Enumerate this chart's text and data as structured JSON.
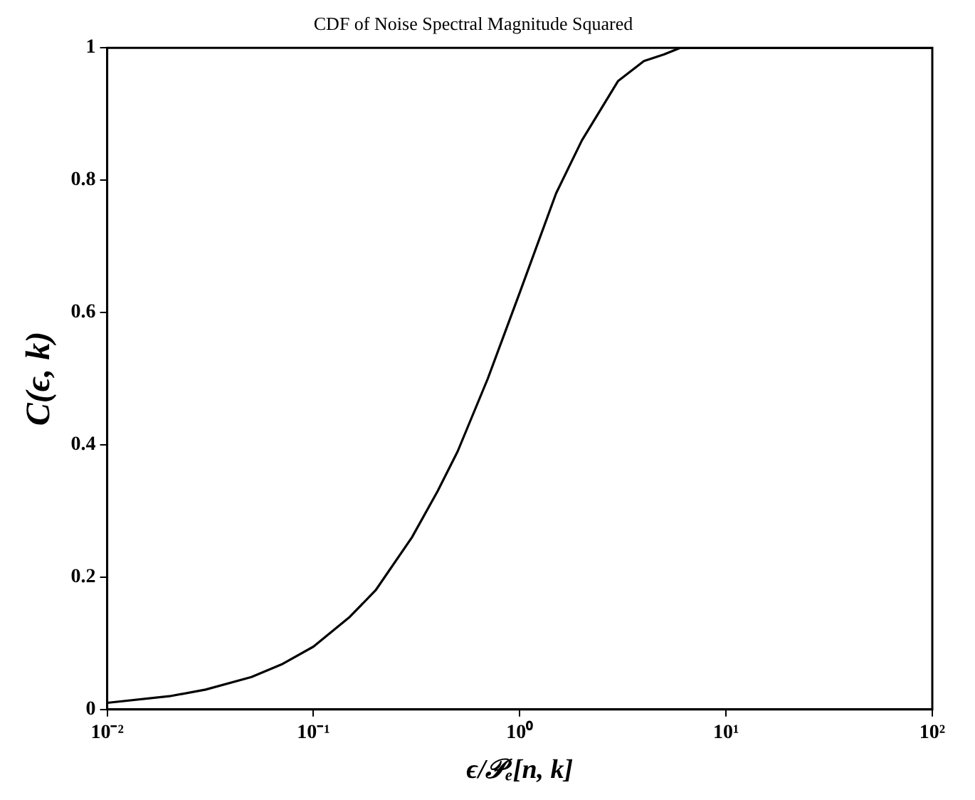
{
  "chart_data": {
    "type": "line",
    "title": "CDF of Noise Spectral Magnitude Squared",
    "xlabel": "ϵ/𝒫ₑ[n, k]",
    "ylabel": "C(ϵ, k)",
    "log": "x",
    "grid": false,
    "legend": false,
    "marker": "none",
    "line_style": "solid",
    "xlim": [
      0.01,
      100
    ],
    "xticks": [
      {
        "value": 0.01,
        "label": "10⁻²"
      },
      {
        "value": 0.1,
        "label": "10⁻¹"
      },
      {
        "value": 1,
        "label": "10⁰"
      },
      {
        "value": 10,
        "label": "10¹"
      },
      {
        "value": 100,
        "label": "10²"
      }
    ],
    "ylim": [
      0,
      1
    ],
    "yticks": [
      0,
      0.2,
      0.4,
      0.6,
      0.8,
      1
    ],
    "series": [
      {
        "color": "#000000",
        "x": [
          0.01,
          0.02,
          0.03,
          0.05,
          0.07,
          0.1,
          0.15,
          0.2,
          0.3,
          0.4,
          0.5,
          0.7,
          1,
          1.5,
          2,
          3,
          4,
          5,
          6,
          10,
          100
        ],
        "values": [
          0.01,
          0.02,
          0.03,
          0.049,
          0.068,
          0.095,
          0.14,
          0.18,
          0.26,
          0.33,
          0.39,
          0.5,
          0.63,
          0.78,
          0.86,
          0.95,
          0.98,
          0.99,
          1,
          1,
          1
        ]
      }
    ]
  }
}
